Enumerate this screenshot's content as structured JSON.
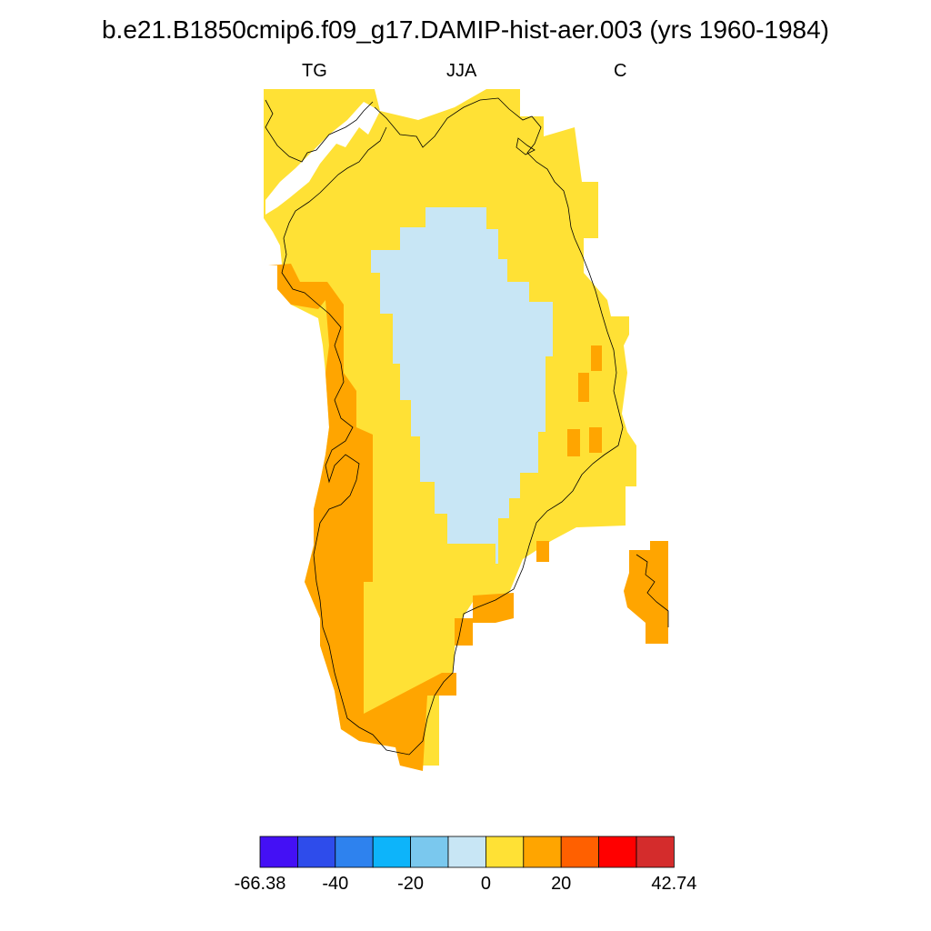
{
  "title": "b.e21.B1850cmip6.f09_g17.DAMIP-hist-aer.003 (yrs 1960-1984)",
  "subtitle": {
    "left": "TG",
    "center": "JJA",
    "right": "C"
  },
  "colors": {
    "positive_strong": "#FFA500",
    "positive_weak": "#FFE135",
    "negative_weak": "#C8E6F5",
    "coastline": "#000000"
  },
  "colorbar": {
    "colors": [
      "#4410F5",
      "#2E4CEB",
      "#2E82EE",
      "#0DB4FA",
      "#7AC8EE",
      "#C8E6F5",
      "#FFE135",
      "#FFA500",
      "#FF6000",
      "#FF0000",
      "#D42C2C"
    ],
    "labels": [
      {
        "text": "-66.38",
        "index": 0
      },
      {
        "text": "-40",
        "index": 2
      },
      {
        "text": "-20",
        "index": 4
      },
      {
        "text": "0",
        "index": 6
      },
      {
        "text": "20",
        "index": 8
      },
      {
        "text": "42.74",
        "index": 11
      }
    ]
  }
}
